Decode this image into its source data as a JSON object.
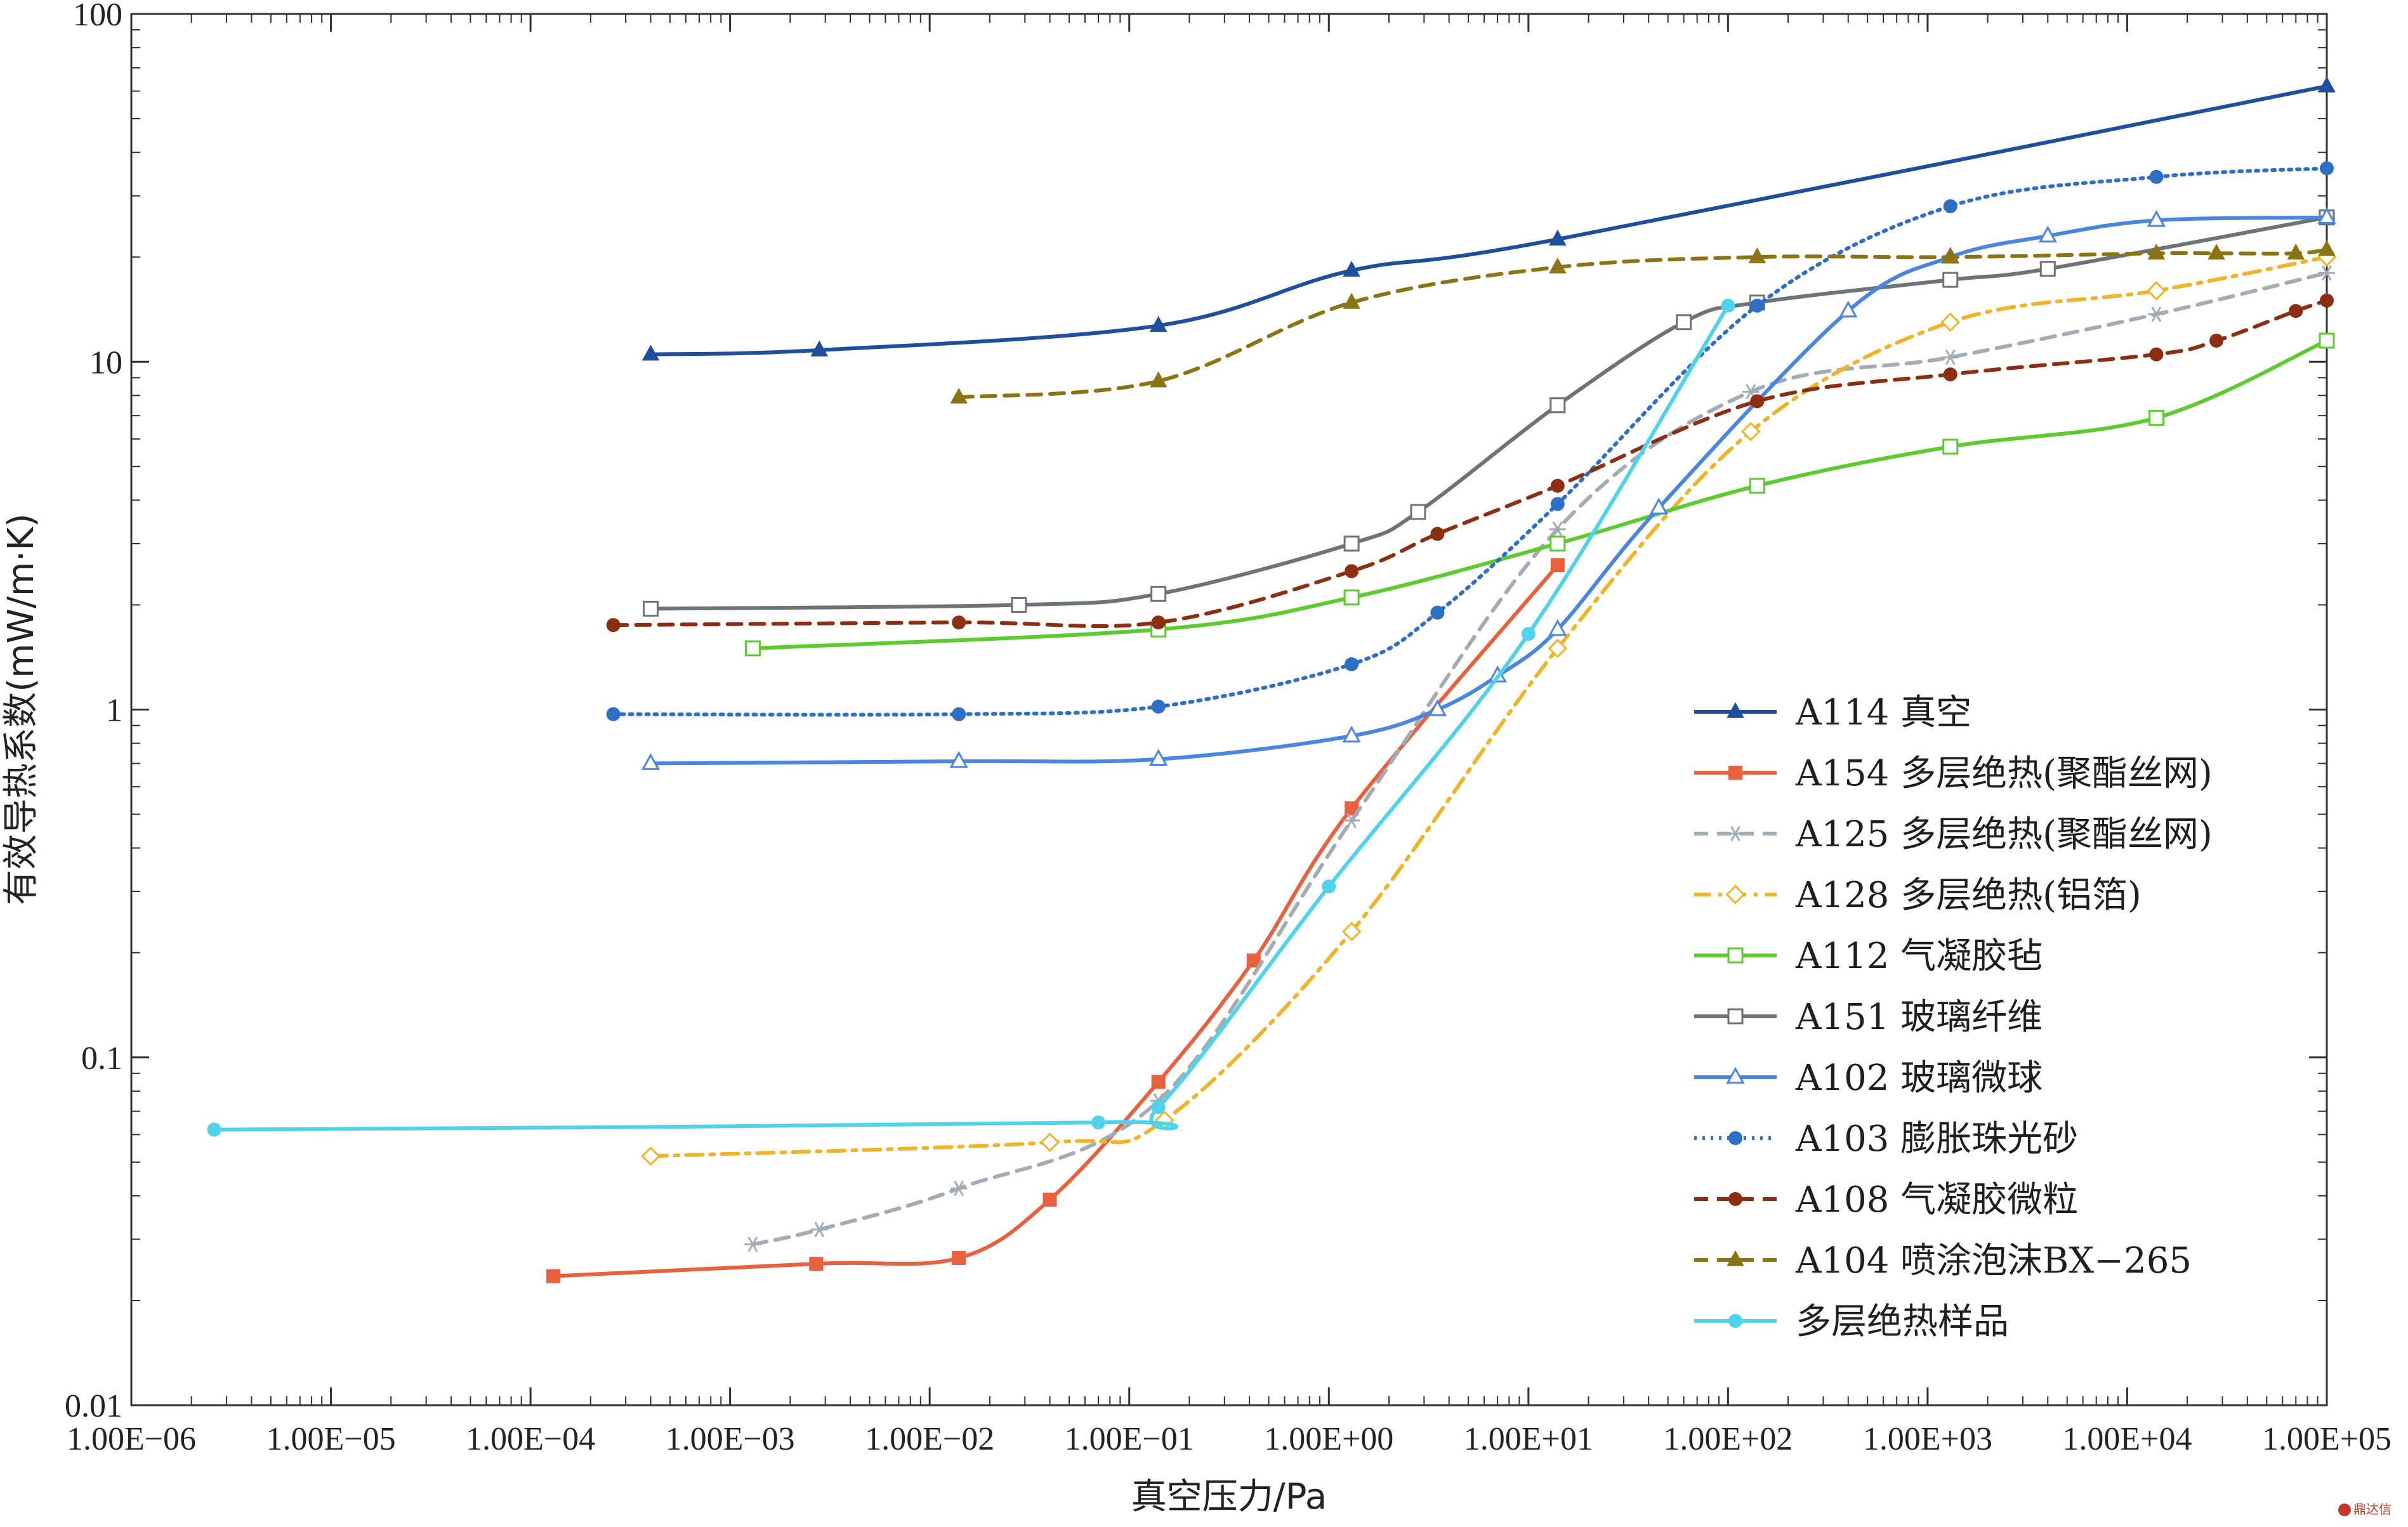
{
  "watermark": "鼎达信",
  "chart_data": {
    "type": "line",
    "title": "",
    "xlabel": "真空压力/Pa",
    "ylabel": "有效导热系数(mW/m·K)",
    "xscale": "log",
    "yscale": "log",
    "xlim": [
      1e-06,
      100000
    ],
    "ylim": [
      0.01,
      100
    ],
    "x_tick_values": [
      1e-06,
      1e-05,
      0.0001,
      0.001,
      0.01,
      0.1,
      1,
      10,
      100,
      1000,
      10000,
      100000
    ],
    "x_tick_labels": [
      "1.00E−06",
      "1.00E−05",
      "1.00E−04",
      "1.00E−03",
      "1.00E−02",
      "1.00E−01",
      "1.00E+00",
      "1.00E+01",
      "1.00E+02",
      "1.00E+03",
      "1.00E+04",
      "1.00E+05"
    ],
    "y_tick_values": [
      0.01,
      0.1,
      1,
      10,
      100
    ],
    "y_tick_labels": [
      "0.01",
      "0.1",
      "1",
      "10",
      "100"
    ],
    "grid": false,
    "legend_position": "right",
    "series": [
      {
        "name": "A114 真空",
        "color": "#1f4e9c",
        "marker": "triangle-filled",
        "dash": "solid",
        "x": [
          0.0004,
          0.0028,
          0.14,
          1.3,
          14,
          100000
        ],
        "y": [
          10.5,
          10.8,
          12.7,
          18.3,
          22.5,
          62
        ]
      },
      {
        "name": "A154 多层绝热(聚酯丝网)",
        "color": "#e8603c",
        "marker": "square-filled",
        "dash": "solid",
        "x": [
          0.00013,
          0.0027,
          0.014,
          0.04,
          0.14,
          0.42,
          1.3,
          14
        ],
        "y": [
          0.0235,
          0.0255,
          0.0265,
          0.039,
          0.085,
          0.19,
          0.52,
          2.6
        ]
      },
      {
        "name": "A125 多层绝热(聚酯丝网)",
        "color": "#a3acb4",
        "marker": "asterisk",
        "dash": "dashed",
        "x": [
          0.0013,
          0.0028,
          0.014,
          0.14,
          1.3,
          14,
          130,
          1300,
          14000,
          100000
        ],
        "y": [
          0.029,
          0.032,
          0.042,
          0.075,
          0.48,
          3.3,
          8.2,
          10.3,
          13.7,
          18
        ]
      },
      {
        "name": "A128 多层绝热(铝箔)",
        "color": "#f0b429",
        "marker": "diamond-open",
        "dash": "dashdot",
        "x": [
          0.0004,
          0.04,
          0.15,
          1.3,
          14,
          130,
          1300,
          14000,
          100000
        ],
        "y": [
          0.052,
          0.057,
          0.066,
          0.23,
          1.5,
          6.3,
          13,
          16,
          20
        ]
      },
      {
        "name": "A112 气凝胶毡",
        "color": "#5dcb2f",
        "marker": "square-open",
        "dash": "solid",
        "x": [
          0.0013,
          0.14,
          1.3,
          14,
          140,
          1300,
          14000,
          100000
        ],
        "y": [
          1.5,
          1.7,
          2.1,
          3.0,
          4.4,
          5.7,
          6.9,
          11.5
        ]
      },
      {
        "name": "A151 玻璃纤维",
        "color": "#6d7377",
        "marker": "square-open",
        "dash": "solid",
        "x": [
          0.0004,
          0.028,
          0.14,
          1.3,
          2.8,
          14,
          60,
          140,
          1300,
          4000,
          100000
        ],
        "y": [
          1.95,
          2.0,
          2.15,
          3.0,
          3.7,
          7.5,
          13,
          14.8,
          17.2,
          18.5,
          26
        ]
      },
      {
        "name": "A102 玻璃微球",
        "color": "#4a86e0",
        "marker": "triangle-open",
        "dash": "solid",
        "x": [
          0.0004,
          0.014,
          0.14,
          1.3,
          3.5,
          7,
          14,
          45,
          400,
          1300,
          4000,
          14000,
          100000
        ],
        "y": [
          0.7,
          0.71,
          0.72,
          0.84,
          1.0,
          1.25,
          1.7,
          3.8,
          14,
          20,
          23,
          25.5,
          26
        ]
      },
      {
        "name": "A103 膨胀珠光砂",
        "color": "#2d6fc4",
        "marker": "circle-filled",
        "dash": "dotted",
        "x": [
          0.00026,
          0.014,
          0.14,
          1.3,
          3.5,
          14,
          140,
          1300,
          14000,
          100000
        ],
        "y": [
          0.97,
          0.97,
          1.02,
          1.35,
          1.9,
          3.9,
          14.5,
          28,
          34,
          36
        ]
      },
      {
        "name": "A108 气凝胶微粒",
        "color": "#8b2e12",
        "marker": "circle-filled",
        "dash": "dashed",
        "x": [
          0.00026,
          0.014,
          0.14,
          1.3,
          3.5,
          14,
          140,
          1300,
          14000,
          28000,
          70000,
          100000
        ],
        "y": [
          1.75,
          1.78,
          1.78,
          2.5,
          3.2,
          4.4,
          7.7,
          9.2,
          10.5,
          11.5,
          14,
          15
        ]
      },
      {
        "name": "A104 喷涂泡沫BX−265",
        "color": "#8a7414",
        "marker": "triangle-filled",
        "dash": "dashed",
        "x": [
          0.014,
          0.14,
          1.3,
          14,
          140,
          1300,
          14000,
          28000,
          70000,
          100000
        ],
        "y": [
          7.9,
          8.8,
          14.8,
          18.7,
          20,
          20,
          20.5,
          20.5,
          20.5,
          21
        ]
      },
      {
        "name": "多层绝热样品",
        "color": "#4fd3ec",
        "marker": "circle-filled",
        "dash": "solid",
        "x": [
          2.6e-06,
          0.07,
          0.14,
          1.0,
          10,
          100
        ],
        "y": [
          0.062,
          0.065,
          0.072,
          0.31,
          1.65,
          14.5
        ]
      }
    ]
  }
}
